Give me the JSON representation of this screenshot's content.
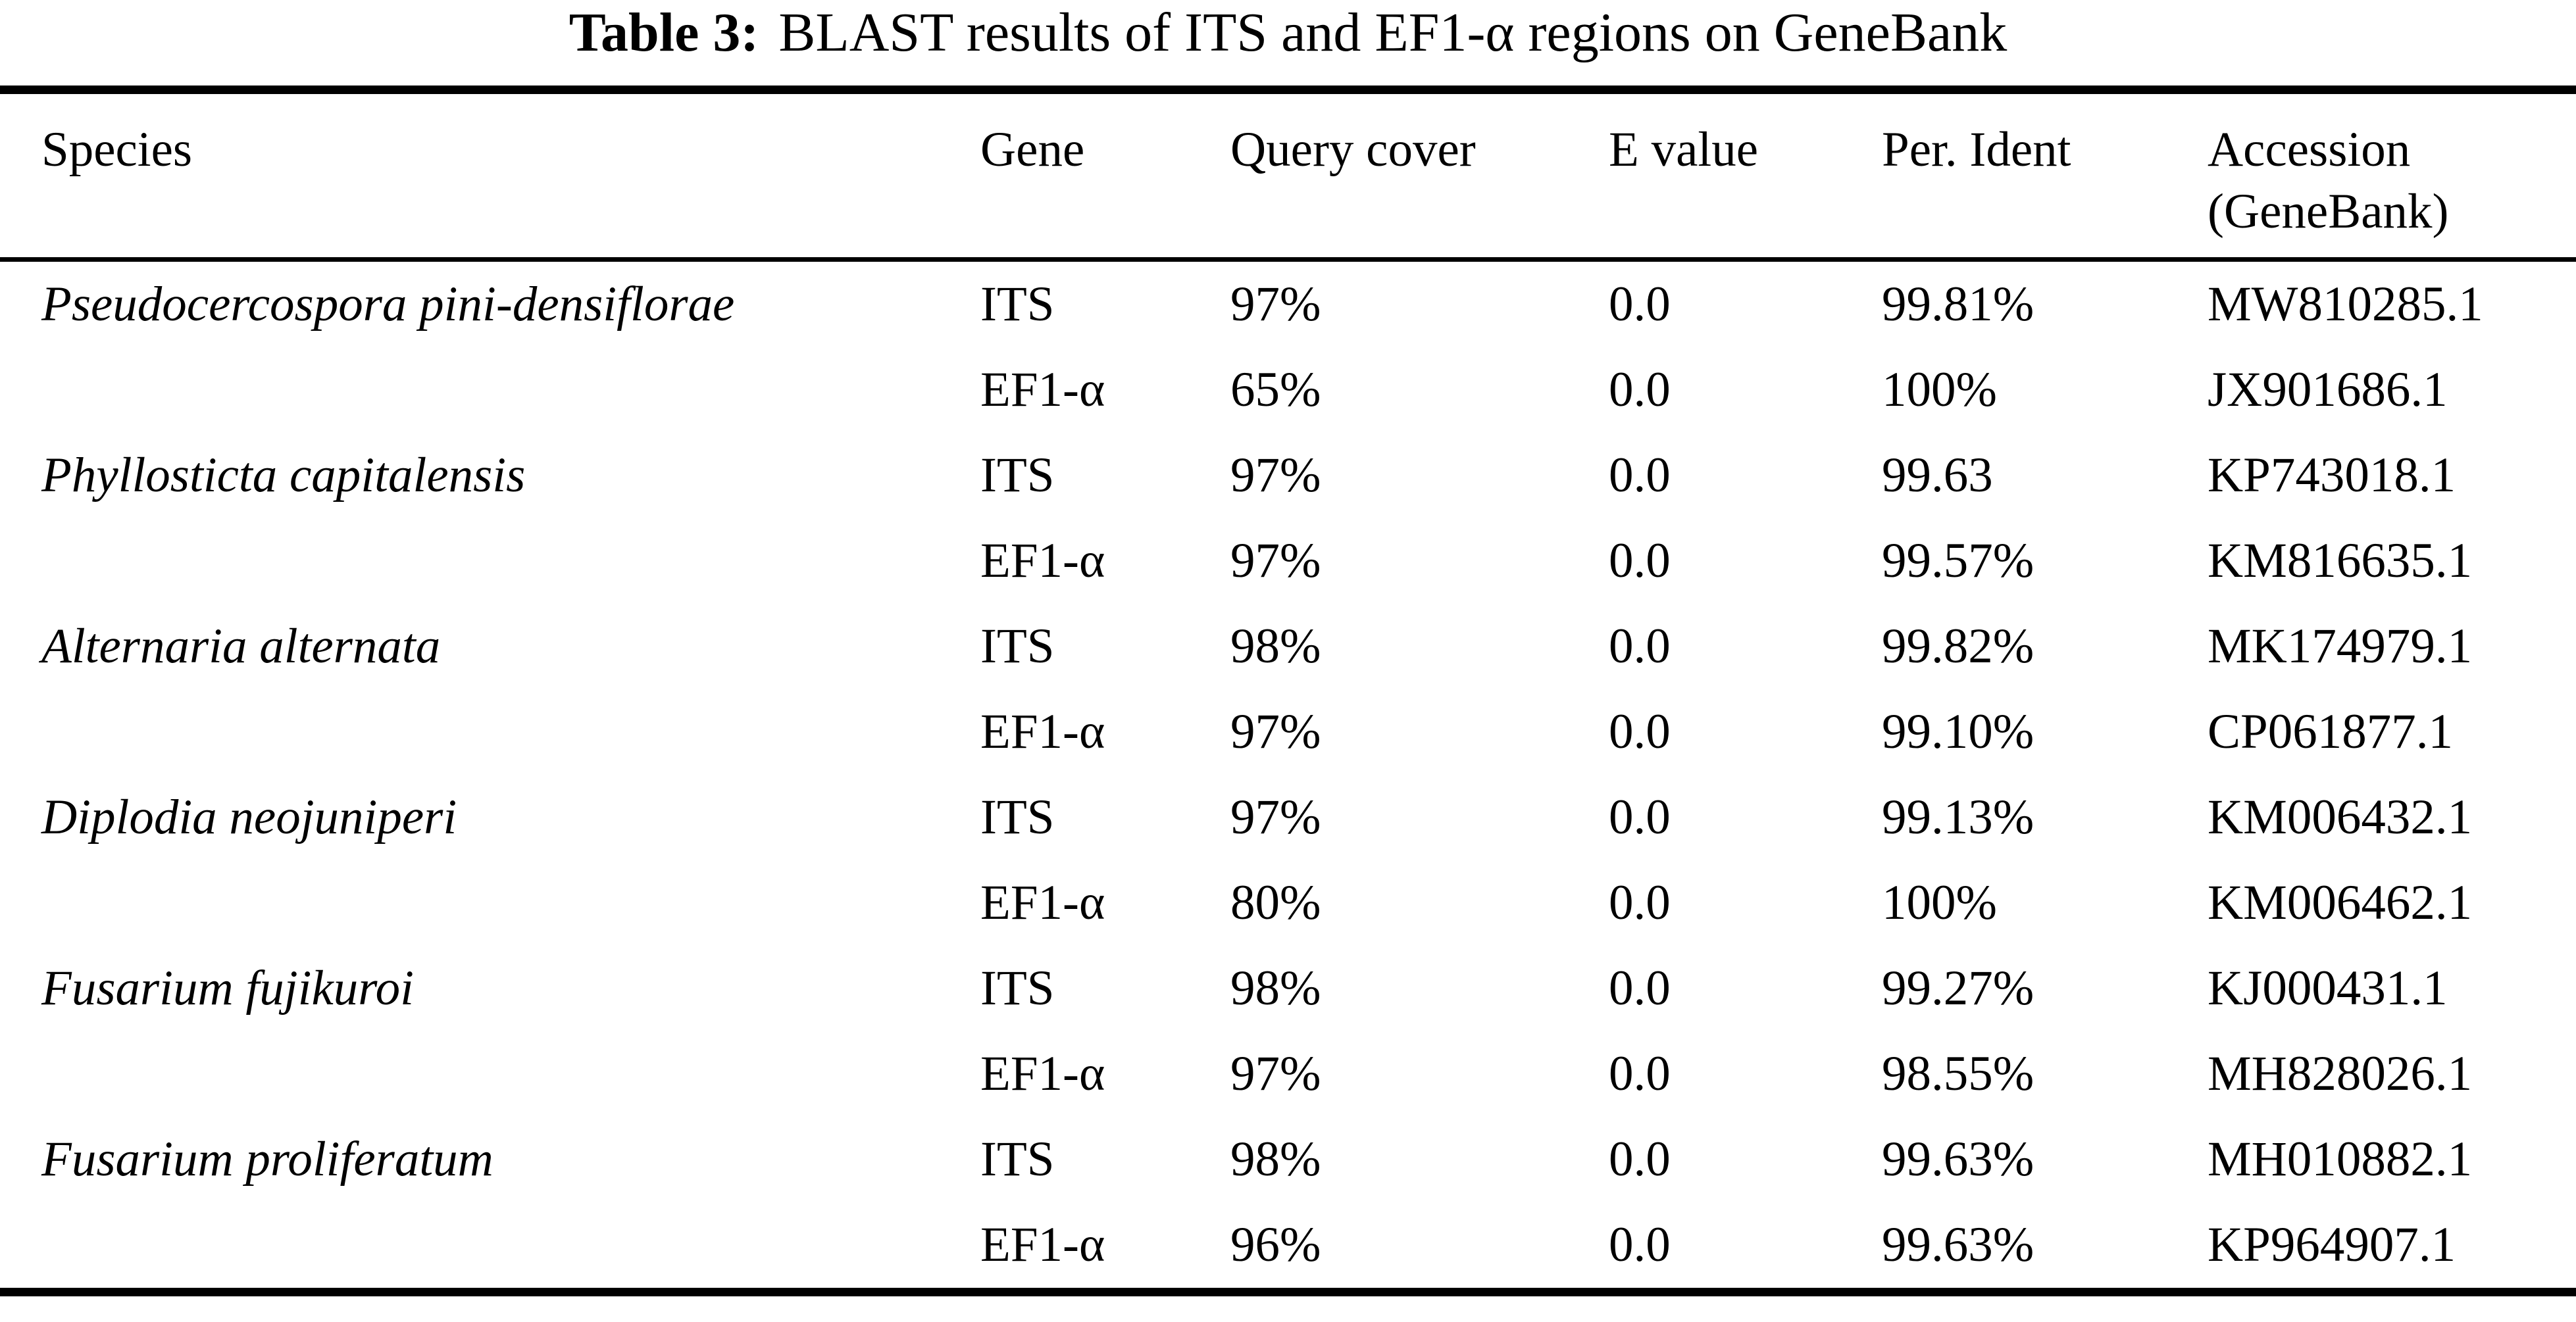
{
  "title": {
    "label": "Table 3:",
    "text": "BLAST results of ITS and EF1-α regions on GeneBank"
  },
  "header": {
    "species": "Species",
    "gene": "Gene",
    "query_cover": "Query cover",
    "e_value": "E value",
    "per_ident": "Per. Ident",
    "accession_line1": "Accession",
    "accession_line2": "(GeneBank)"
  },
  "rows": [
    {
      "species": "Pseudocercospora pini-densiflorae",
      "gene": "ITS",
      "query_cover": "97%",
      "e_value": "0.0",
      "per_ident": "99.81%",
      "accession": "MW810285.1"
    },
    {
      "species": "",
      "gene": "EF1-α",
      "query_cover": "65%",
      "e_value": "0.0",
      "per_ident": "100%",
      "accession": "JX901686.1"
    },
    {
      "species": "Phyllosticta capitalensis",
      "gene": "ITS",
      "query_cover": "97%",
      "e_value": "0.0",
      "per_ident": "99.63",
      "accession": "KP743018.1"
    },
    {
      "species": "",
      "gene": "EF1-α",
      "query_cover": "97%",
      "e_value": "0.0",
      "per_ident": "99.57%",
      "accession": "KM816635.1"
    },
    {
      "species": "Alternaria alternata",
      "gene": "ITS",
      "query_cover": "98%",
      "e_value": "0.0",
      "per_ident": "99.82%",
      "accession": "MK174979.1"
    },
    {
      "species": "",
      "gene": "EF1-α",
      "query_cover": "97%",
      "e_value": "0.0",
      "per_ident": "99.10%",
      "accession": "CP061877.1"
    },
    {
      "species": "Diplodia neojuniperi",
      "gene": "ITS",
      "query_cover": "97%",
      "e_value": "0.0",
      "per_ident": "99.13%",
      "accession": "KM006432.1"
    },
    {
      "species": "",
      "gene": "EF1-α",
      "query_cover": "80%",
      "e_value": "0.0",
      "per_ident": "100%",
      "accession": "KM006462.1"
    },
    {
      "species": "Fusarium fujikuroi",
      "gene": "ITS",
      "query_cover": "98%",
      "e_value": "0.0",
      "per_ident": "99.27%",
      "accession": "KJ000431.1"
    },
    {
      "species": "",
      "gene": "EF1-α",
      "query_cover": "97%",
      "e_value": "0.0",
      "per_ident": "98.55%",
      "accession": "MH828026.1"
    },
    {
      "species": "Fusarium proliferatum",
      "gene": "ITS",
      "query_cover": "98%",
      "e_value": "0.0",
      "per_ident": "99.63%",
      "accession": "MH010882.1"
    },
    {
      "species": "",
      "gene": "EF1-α",
      "query_cover": "96%",
      "e_value": "0.0",
      "per_ident": "99.63%",
      "accession": "KP964907.1"
    }
  ],
  "colors": {
    "text": "#000000",
    "background": "#ffffff",
    "rule": "#000000"
  }
}
